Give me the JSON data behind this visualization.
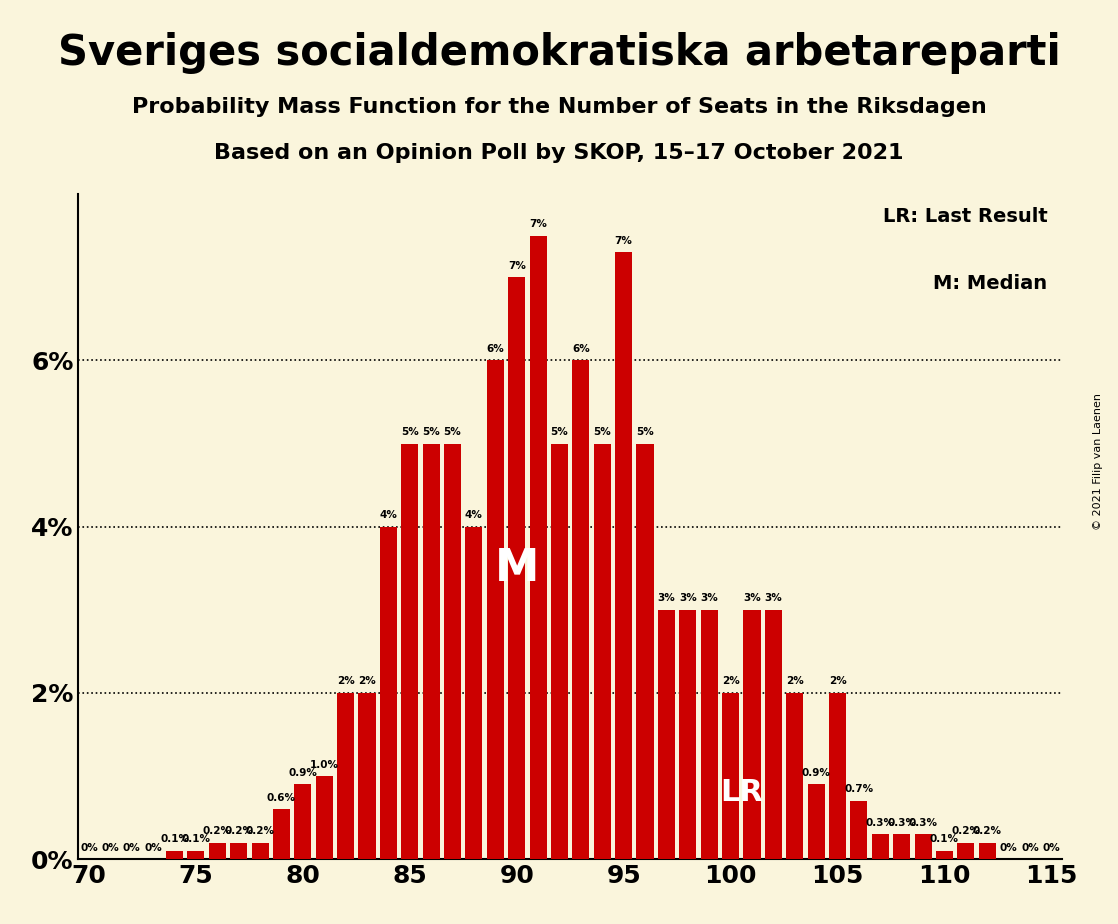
{
  "title": "Sveriges socialdemokratiska arbetareparti",
  "subtitle1": "Probability Mass Function for the Number of Seats in the Riksdagen",
  "subtitle2": "Based on an Opinion Poll by SKOP, 15–17 October 2021",
  "copyright": "© 2021 Filip van Laenen",
  "lr_label": "LR: Last Result",
  "m_label": "M: Median",
  "bar_color": "#cc0000",
  "background_color": "#faf5dc",
  "seats": [
    70,
    71,
    72,
    73,
    74,
    75,
    76,
    77,
    78,
    79,
    80,
    81,
    82,
    83,
    84,
    85,
    86,
    87,
    88,
    89,
    90,
    91,
    92,
    93,
    94,
    95,
    96,
    97,
    98,
    99,
    100,
    101,
    102,
    103,
    104,
    105,
    106,
    107,
    108,
    109,
    110,
    111,
    112,
    113,
    114,
    115
  ],
  "probs": [
    0.0,
    0.0,
    0.0,
    0.0,
    0.001,
    0.001,
    0.002,
    0.002,
    0.002,
    0.006,
    0.009,
    0.01,
    0.02,
    0.02,
    0.04,
    0.05,
    0.05,
    0.05,
    0.04,
    0.06,
    0.07,
    0.075,
    0.05,
    0.06,
    0.05,
    0.073,
    0.05,
    0.03,
    0.03,
    0.03,
    0.02,
    0.03,
    0.03,
    0.02,
    0.009,
    0.02,
    0.007,
    0.003,
    0.003,
    0.003,
    0.001,
    0.002,
    0.002,
    0.0,
    0.0,
    0.0
  ],
  "median_seat": 91,
  "lr_seat": 100,
  "xlim": [
    69.5,
    115.5
  ],
  "ylim": [
    0,
    0.08
  ],
  "yticks": [
    0.0,
    0.02,
    0.04,
    0.06
  ],
  "xticks": [
    70,
    75,
    80,
    85,
    90,
    95,
    100,
    105,
    110,
    115
  ],
  "bar_labels": {
    "70": "0%",
    "71": "0%",
    "72": "0%",
    "73": "0%",
    "74": "0.1%",
    "75": "0.1%",
    "76": "0.2%",
    "77": "0.2%",
    "78": "0.2%",
    "79": "0.6%",
    "80": "0.9%",
    "81": "1.0%",
    "82": "2%",
    "83": "2%",
    "84": "4%",
    "85": "5%",
    "86": "5%",
    "87": "5%",
    "88": "4%",
    "89": "6%",
    "90": "7%",
    "91": "7%",
    "92": "5%",
    "93": "6%",
    "94": "5%",
    "95": "7%",
    "96": "5%",
    "97": "3%",
    "98": "3%",
    "99": "3%",
    "100": "2%",
    "101": "3%",
    "102": "3%",
    "103": "2%",
    "104": "0.9%",
    "105": "2%",
    "106": "0.7%",
    "107": "0.3%",
    "108": "0.3%",
    "109": "0.3%",
    "110": "0.1%",
    "111": "0.2%",
    "112": "0.2%",
    "113": "0%",
    "114": "0%",
    "115": "0%"
  }
}
